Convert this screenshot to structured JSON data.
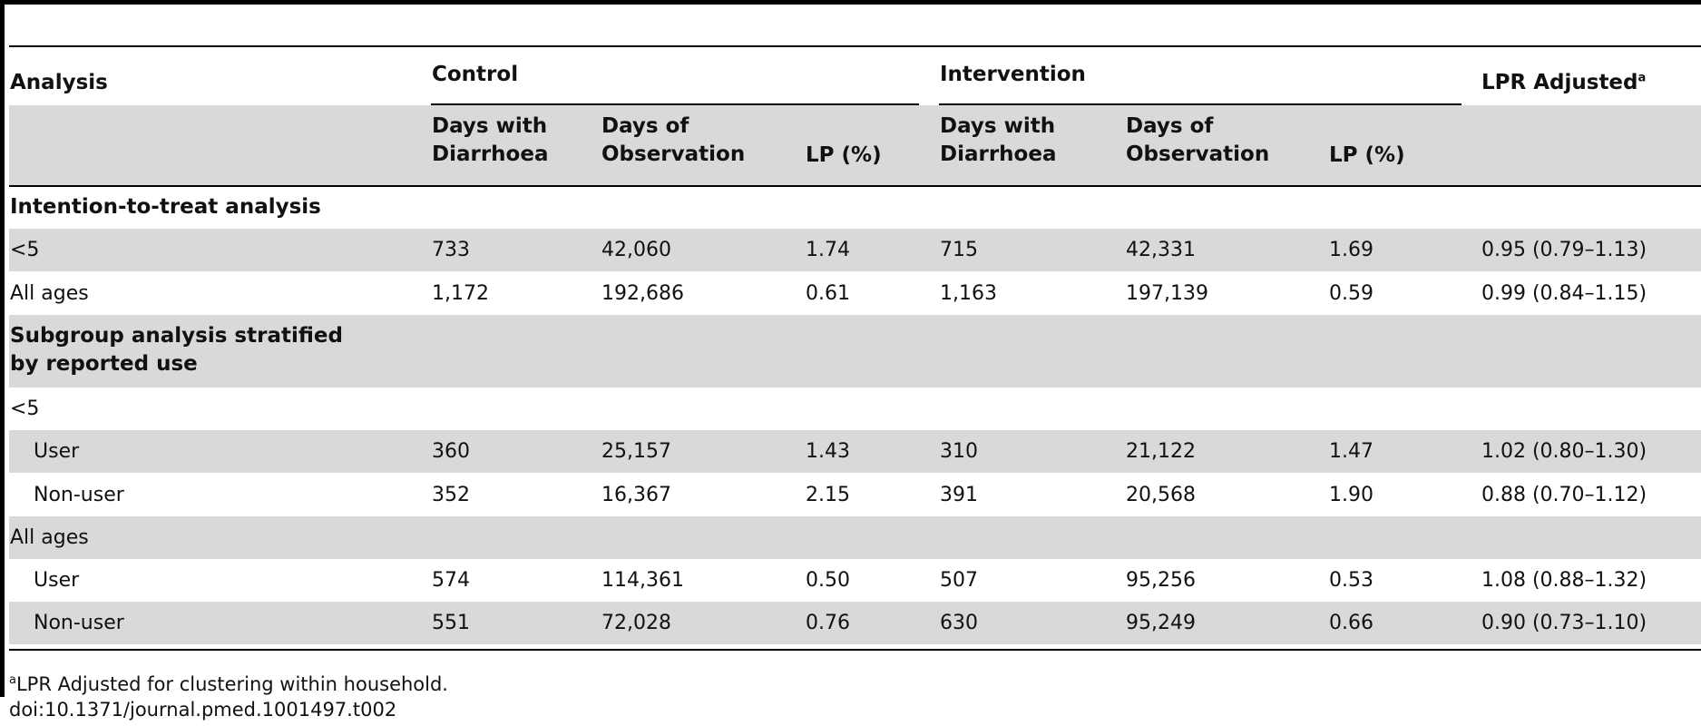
{
  "table": {
    "header": {
      "analysis": "Analysis",
      "control": "Control",
      "intervention": "Intervention",
      "lpr": "LPR Adjusted",
      "lpr_sup": "a",
      "sub": {
        "days_with_1": "Days with",
        "days_with_2": "Diarrhoea",
        "days_of_1": "Days of",
        "days_of_2": "Observation",
        "lp": "LP (%)"
      }
    },
    "sections": {
      "itt": "Intention-to-treat analysis",
      "subgroup_1": "Subgroup analysis stratified",
      "subgroup_2": "by reported use"
    },
    "rows": [
      {
        "label": "<5",
        "c_dw": "733",
        "c_do": "42,060",
        "c_lp": "1.74",
        "i_dw": "715",
        "i_do": "42,331",
        "i_lp": "1.69",
        "lpr": "0.95 (0.79–1.13)"
      },
      {
        "label": "All ages",
        "c_dw": "1,172",
        "c_do": "192,686",
        "c_lp": "0.61",
        "i_dw": "1,163",
        "i_do": "197,139",
        "i_lp": "0.59",
        "lpr": "0.99 (0.84–1.15)"
      },
      {
        "label": "<5"
      },
      {
        "label": "User",
        "c_dw": "360",
        "c_do": "25,157",
        "c_lp": "1.43",
        "i_dw": "310",
        "i_do": "21,122",
        "i_lp": "1.47",
        "lpr": "1.02 (0.80–1.30)"
      },
      {
        "label": "Non-user",
        "c_dw": "352",
        "c_do": "16,367",
        "c_lp": "2.15",
        "i_dw": "391",
        "i_do": "20,568",
        "i_lp": "1.90",
        "lpr": "0.88 (0.70–1.12)"
      },
      {
        "label": "All ages"
      },
      {
        "label": "User",
        "c_dw": "574",
        "c_do": "114,361",
        "c_lp": "0.50",
        "i_dw": "507",
        "i_do": "95,256",
        "i_lp": "0.53",
        "lpr": "1.08 (0.88–1.32)"
      },
      {
        "label": "Non-user",
        "c_dw": "551",
        "c_do": "72,028",
        "c_lp": "0.76",
        "i_dw": "630",
        "i_do": "95,249",
        "i_lp": "0.66",
        "lpr": "0.90 (0.73–1.10)"
      }
    ]
  },
  "footnotes": {
    "sup": "a",
    "note": "LPR Adjusted for clustering within household.",
    "doi": "doi:10.1371/journal.pmed.1001497.t002"
  }
}
